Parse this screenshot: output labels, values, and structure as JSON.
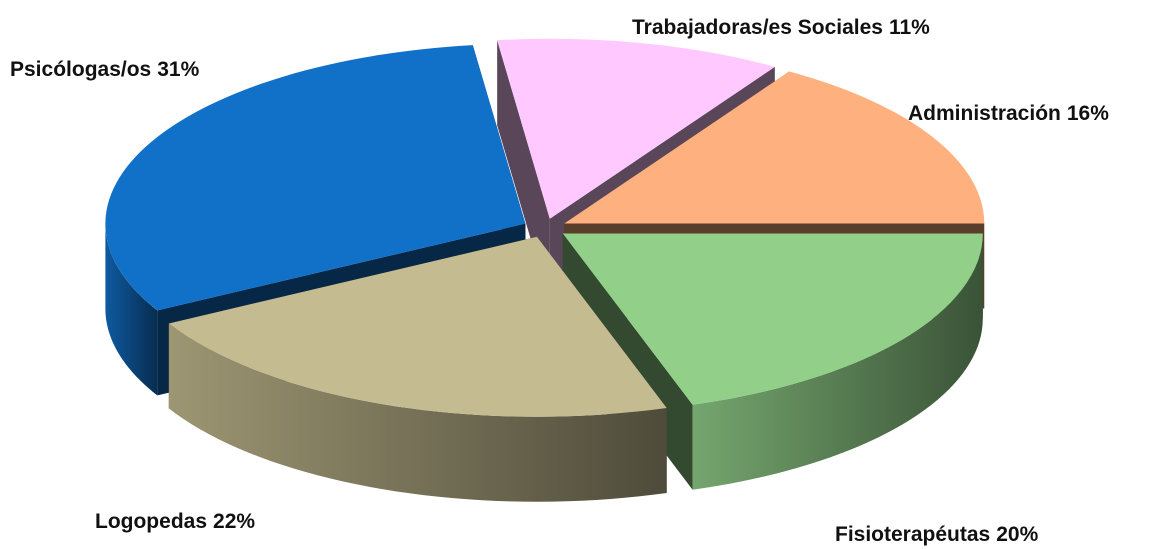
{
  "chart_data": {
    "type": "pie",
    "categories": [
      "Fisioterapéutas",
      "Logopedas",
      "Psicólogas/os",
      "Trabajadoras/es Sociales",
      "Administración"
    ],
    "values": [
      20,
      22,
      31,
      11,
      16
    ],
    "value_labels": [
      "20%",
      "22%",
      "31%",
      "11%",
      "16%"
    ],
    "colors": [
      "#92d08a",
      "#c4bb90",
      "#1170c8",
      "#ffc8ff",
      "#ffb07f"
    ]
  }
}
